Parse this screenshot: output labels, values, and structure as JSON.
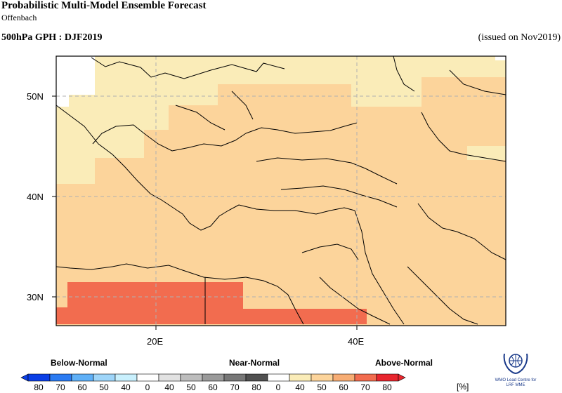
{
  "header": {
    "title": "Probabilistic Multi-Model Ensemble Forecast",
    "subtitle": "Offenbach",
    "product": "500hPa GPH : DJF2019",
    "issued": "(issued on Nov2019)"
  },
  "map": {
    "lat_labels": [
      "50N",
      "40N",
      "30N"
    ],
    "lon_labels": [
      "20E",
      "40E"
    ],
    "extent": {
      "lon_min": 10,
      "lon_max": 60,
      "lat_min": 27,
      "lat_max": 55
    },
    "grid_style": "dashed",
    "colors": {
      "white": "#ffffff",
      "above_40_50": "#faecb8",
      "above_50_60": "#fcd49b",
      "above_60_70": "#f7ad74",
      "above_70_80": "#f26c4f"
    }
  },
  "legend": {
    "categories": [
      "Below-Normal",
      "Near-Normal",
      "Above-Normal"
    ],
    "below_ticks": [
      "80",
      "70",
      "60",
      "50",
      "40"
    ],
    "near_ticks": [
      "0",
      "40",
      "50",
      "60",
      "70",
      "80"
    ],
    "above_ticks": [
      "0",
      "40",
      "50",
      "60",
      "70",
      "80"
    ],
    "unit": "[%]",
    "below_colors": [
      "#0a3ee6",
      "#2b7bf2",
      "#5fb0f7",
      "#9ed5f9",
      "#c9f0fd"
    ],
    "near_colors": [
      "#ffffff",
      "#e2e2e2",
      "#bdbdbd",
      "#9a9a9a",
      "#777777",
      "#505050"
    ],
    "above_colors": [
      "#ffffff",
      "#faecb8",
      "#fcd49b",
      "#f7ad74",
      "#f26c4f",
      "#e8262e"
    ]
  },
  "logo": {
    "line1": "WMO Lead Centre for",
    "line2": "LRF MME"
  }
}
